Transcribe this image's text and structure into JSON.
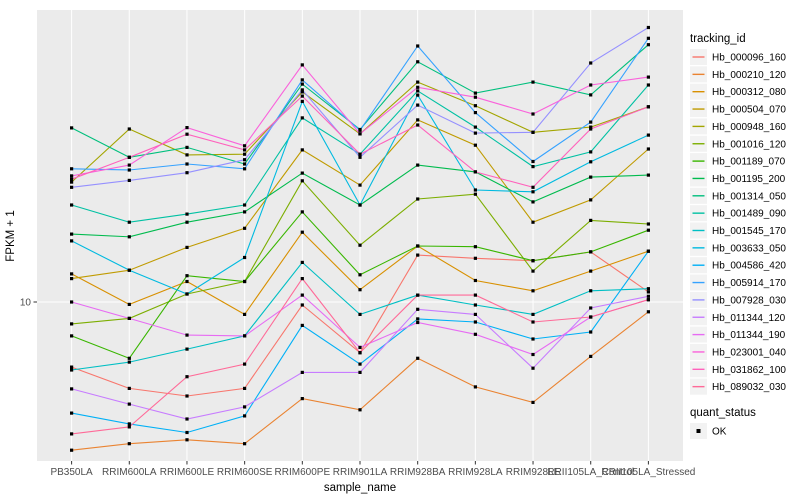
{
  "chart_data": {
    "type": "line",
    "title": "",
    "xlabel": "sample_name",
    "ylabel": "FPKM + 1",
    "y_scale": "log10",
    "ylim": [
      2.5,
      112
    ],
    "y_ticks": [
      {
        "value": 10,
        "label": "10"
      }
    ],
    "grid": "gray panel with white gridlines (ggplot default)",
    "legend_position": "right",
    "point_marker": "small black square at every data point (quant_status = OK)",
    "categories": [
      "PB350LA",
      "RRIM600LA",
      "RRIM600LE",
      "RRIM600SE",
      "RRIM600PE",
      "RRIM901LA",
      "RRIM928BA",
      "RRIM928LA",
      "RRIM928LE",
      "RRII105LA_Control",
      "RRII105LA_Stressed"
    ],
    "series": [
      {
        "name": "Hb_000096_160",
        "color": "#F8766D",
        "values": [
          5.75,
          4.8,
          4.5,
          4.8,
          9.75,
          6.5,
          14.9,
          14.5,
          14.2,
          15.3,
          10.9
        ]
      },
      {
        "name": "Hb_000210_120",
        "color": "#EA8331",
        "values": [
          2.84,
          3.0,
          3.1,
          3.0,
          4.4,
          4.0,
          6.2,
          4.86,
          4.26,
          6.3,
          9.2
        ]
      },
      {
        "name": "Hb_000312_080",
        "color": "#D89000",
        "values": [
          12.7,
          9.8,
          11.9,
          9.0,
          18.1,
          11.1,
          16.1,
          12.0,
          11.0,
          13.0,
          15.4
        ]
      },
      {
        "name": "Hb_000504_070",
        "color": "#C09B00",
        "values": [
          12.2,
          13.1,
          15.9,
          18.7,
          36.4,
          27.0,
          47.0,
          37.9,
          19.7,
          23.8,
          36.7
        ]
      },
      {
        "name": "Hb_000948_160",
        "color": "#A3A500",
        "values": [
          27.7,
          43.5,
          34.9,
          35.1,
          59.6,
          41.7,
          64.8,
          53.0,
          42.3,
          44.2,
          52.5
        ]
      },
      {
        "name": "Hb_001016_120",
        "color": "#7CAE00",
        "values": [
          8.3,
          8.7,
          10.7,
          11.9,
          28.0,
          16.2,
          24.0,
          25.0,
          13.0,
          20.0,
          19.4
        ]
      },
      {
        "name": "Hb_001189_070",
        "color": "#39B600",
        "values": [
          7.5,
          6.2,
          12.5,
          11.9,
          21.5,
          12.6,
          16.1,
          16.0,
          14.2,
          15.3,
          18.4
        ]
      },
      {
        "name": "Hb_001195_200",
        "color": "#00BB4E",
        "values": [
          17.8,
          17.4,
          19.7,
          21.5,
          29.9,
          22.8,
          32.0,
          30.2,
          23.4,
          28.9,
          29.4
        ]
      },
      {
        "name": "Hb_001314_050",
        "color": "#00BF7D",
        "values": [
          43.9,
          34.2,
          37.2,
          32.3,
          63.7,
          43.3,
          77.0,
          59.0,
          64.8,
          58.1,
          89.0
        ]
      },
      {
        "name": "Hb_001489_090",
        "color": "#00C1A3",
        "values": [
          22.8,
          19.7,
          21.1,
          22.8,
          47.8,
          35.1,
          60.1,
          44.2,
          31.6,
          35.8,
          63.2
        ]
      },
      {
        "name": "Hb_001545_170",
        "color": "#00BFC4",
        "values": [
          5.61,
          6.0,
          6.7,
          7.5,
          14.0,
          9.0,
          10.6,
          9.75,
          9.0,
          11.0,
          11.2
        ]
      },
      {
        "name": "Hb_003633_050",
        "color": "#00BAE0",
        "values": [
          16.8,
          13.1,
          10.7,
          14.6,
          55.0,
          22.8,
          58.0,
          25.9,
          25.5,
          32.9,
          41.3
        ]
      },
      {
        "name": "Hb_004586_420",
        "color": "#00B0F6",
        "values": [
          3.89,
          3.55,
          3.3,
          3.8,
          8.2,
          5.9,
          8.66,
          8.44,
          7.3,
          7.75,
          15.4
        ]
      },
      {
        "name": "Hb_005914_170",
        "color": "#35A2FF",
        "values": [
          31.0,
          30.7,
          32.3,
          31.0,
          66.0,
          43.0,
          88.0,
          50.0,
          33.0,
          46.1,
          94.0
        ]
      },
      {
        "name": "Hb_007928_030",
        "color": "#9590FF",
        "values": [
          26.5,
          28.1,
          30.0,
          33.5,
          60.6,
          34.2,
          53.3,
          42.0,
          42.3,
          76.2,
          103.0
        ]
      },
      {
        "name": "Hb_011344_120",
        "color": "#C77CFF",
        "values": [
          4.78,
          4.2,
          3.7,
          4.1,
          5.5,
          5.5,
          9.4,
          9.0,
          5.7,
          9.5,
          10.5
        ]
      },
      {
        "name": "Hb_011344_190",
        "color": "#E76BF3",
        "values": [
          10.0,
          8.7,
          7.55,
          7.5,
          10.6,
          6.8,
          8.4,
          7.6,
          6.4,
          8.8,
          10.2
        ]
      },
      {
        "name": "Hb_023001_040",
        "color": "#FA62DB",
        "values": [
          29.2,
          32.0,
          44.0,
          37.7,
          75.0,
          41.7,
          62.0,
          57.0,
          49.4,
          63.2,
          67.6
        ]
      },
      {
        "name": "Hb_031862_100",
        "color": "#FF62BC",
        "values": [
          28.4,
          34.2,
          41.6,
          36.4,
          57.5,
          35.1,
          45.0,
          30.2,
          26.5,
          43.5,
          52.5
        ]
      },
      {
        "name": "Hb_089032_030",
        "color": "#FF6A98",
        "values": [
          3.26,
          3.46,
          5.3,
          5.9,
          12.2,
          6.5,
          10.6,
          10.6,
          8.44,
          8.8,
          10.2
        ]
      }
    ]
  },
  "legend": {
    "tracking_title": "tracking_id",
    "quant_title": "quant_status",
    "quant_items": [
      {
        "label": "OK",
        "marker": "black-square"
      }
    ]
  },
  "colors": {
    "panel_bg": "#EBEBEB",
    "gridline": "#FFFFFF",
    "axis_text": "#4D4D4D",
    "title_text": "#000000",
    "legend_key_bg": "#F2F2F2",
    "point": "#000000",
    "tick_mark": "#333333"
  }
}
